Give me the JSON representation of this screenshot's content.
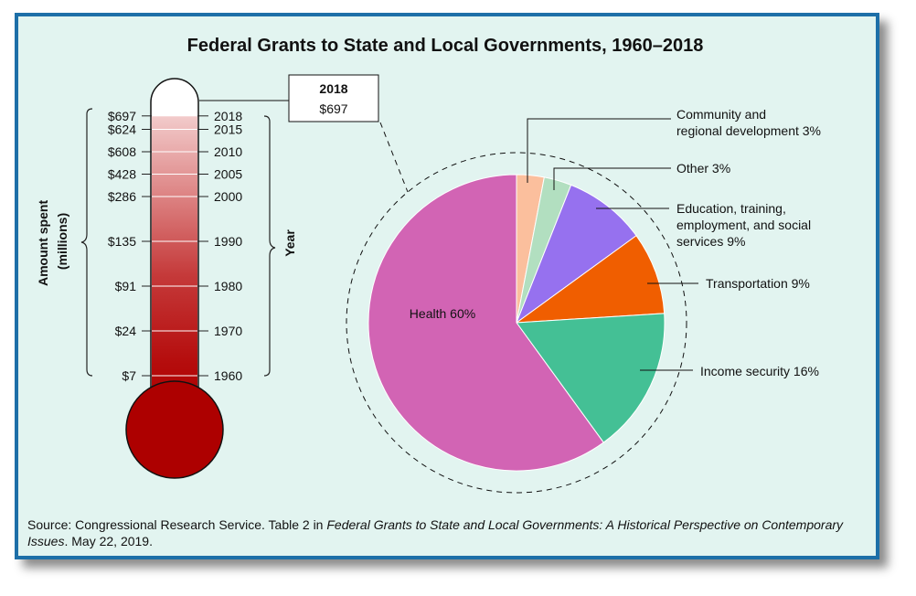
{
  "chart_data": [
    {
      "type": "thermometer",
      "title": "Federal Grants to State and Local Governments, 1960–2018",
      "ylabel": "Amount spent (millions)",
      "ylabel_lines": [
        "Amount spent",
        "(millions)"
      ],
      "xlabel": "Year",
      "years": [
        "1960",
        "1970",
        "1980",
        "1990",
        "2000",
        "2005",
        "2010",
        "2015",
        "2018"
      ],
      "amounts": [
        "$7",
        "$24",
        "$91",
        "$135",
        "$286",
        "$428",
        "$608",
        "$624",
        "$697"
      ],
      "values": [
        7,
        24,
        91,
        135,
        286,
        428,
        608,
        624,
        697
      ],
      "callout": {
        "year": "2018",
        "amount": "$697"
      }
    },
    {
      "type": "pie",
      "slices": [
        {
          "lines": [
            "Community and",
            "regional development 3%"
          ],
          "value": 3,
          "color": "#fbbf9d"
        },
        {
          "lines": [
            "Other 3%"
          ],
          "value": 3,
          "color": "#b2dfc0"
        },
        {
          "lines": [
            "Education, training,",
            "employment, and social",
            "services 9%"
          ],
          "value": 9,
          "color": "#9671ef"
        },
        {
          "lines": [
            "Transportation 9%"
          ],
          "value": 9,
          "color": "#f05e00"
        },
        {
          "lines": [
            "Income security 16%"
          ],
          "value": 16,
          "color": "#44c095"
        },
        {
          "lines": [
            "Health 60%"
          ],
          "value": 60,
          "color": "#d264b4"
        }
      ]
    }
  ],
  "source": {
    "prefix": "Source: Congressional Research Service. Table 2 in ",
    "italic": "Federal Grants to State and Local Governments: A Historical Perspective on Contemporary Issues",
    "suffix": ". May 22, 2019."
  }
}
